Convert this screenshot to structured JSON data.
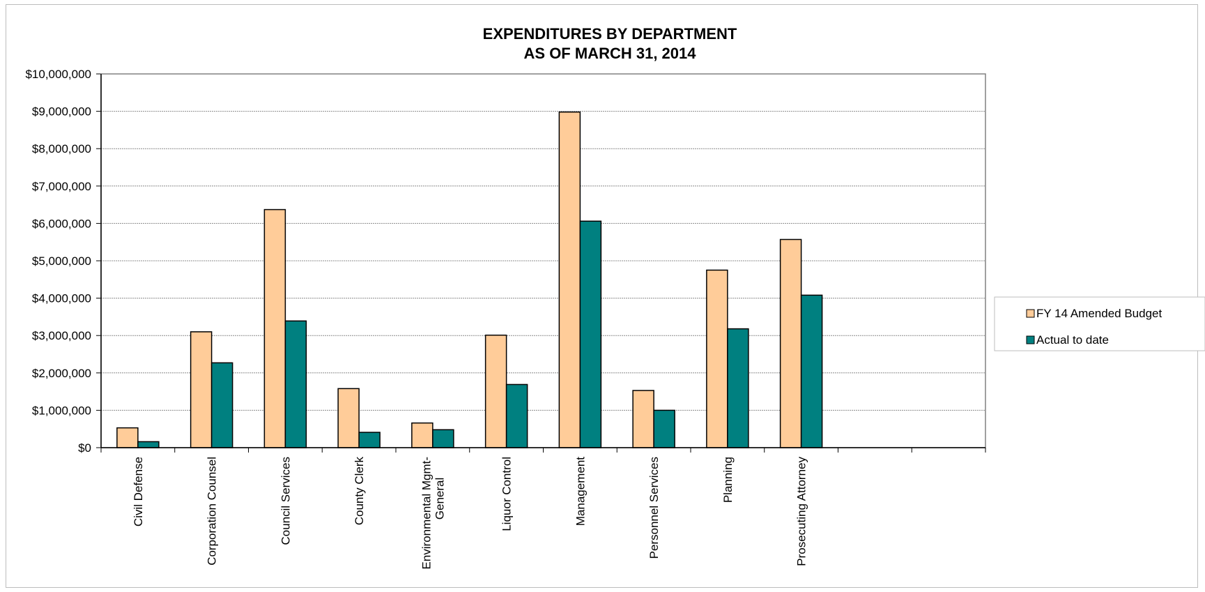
{
  "chart_data": {
    "type": "bar",
    "title": [
      "EXPENDITURES BY DEPARTMENT",
      "AS OF MARCH 31, 2014"
    ],
    "xlabel": "",
    "ylabel": "",
    "ylim": [
      0,
      10000000
    ],
    "y_ticks": [
      "$0",
      "$1,000,000",
      "$2,000,000",
      "$3,000,000",
      "$4,000,000",
      "$5,000,000",
      "$6,000,000",
      "$7,000,000",
      "$8,000,000",
      "$9,000,000",
      "$10,000,000"
    ],
    "grid": true,
    "legend_position": "right",
    "categories": [
      [
        "Civil Defense"
      ],
      [
        "Corporation Counsel"
      ],
      [
        "Council Services"
      ],
      [
        "County Clerk"
      ],
      [
        "Environmental Mgmt-",
        "General"
      ],
      [
        "Liquor Control"
      ],
      [
        "Management"
      ],
      [
        "Personnel Services"
      ],
      [
        "Planning"
      ],
      [
        "Prosecuting Attorney"
      ],
      [
        ""
      ],
      [
        ""
      ]
    ],
    "series": [
      {
        "name": "FY 14 Amended Budget",
        "color": "#ffcc99",
        "values": [
          530000,
          3100000,
          6370000,
          1580000,
          660000,
          3010000,
          8980000,
          1530000,
          4750000,
          5570000,
          null,
          null
        ]
      },
      {
        "name": "Actual to date",
        "color": "#008080",
        "values": [
          160000,
          2270000,
          3390000,
          410000,
          480000,
          1690000,
          6060000,
          1000000,
          3180000,
          4080000,
          null,
          null
        ]
      }
    ]
  }
}
